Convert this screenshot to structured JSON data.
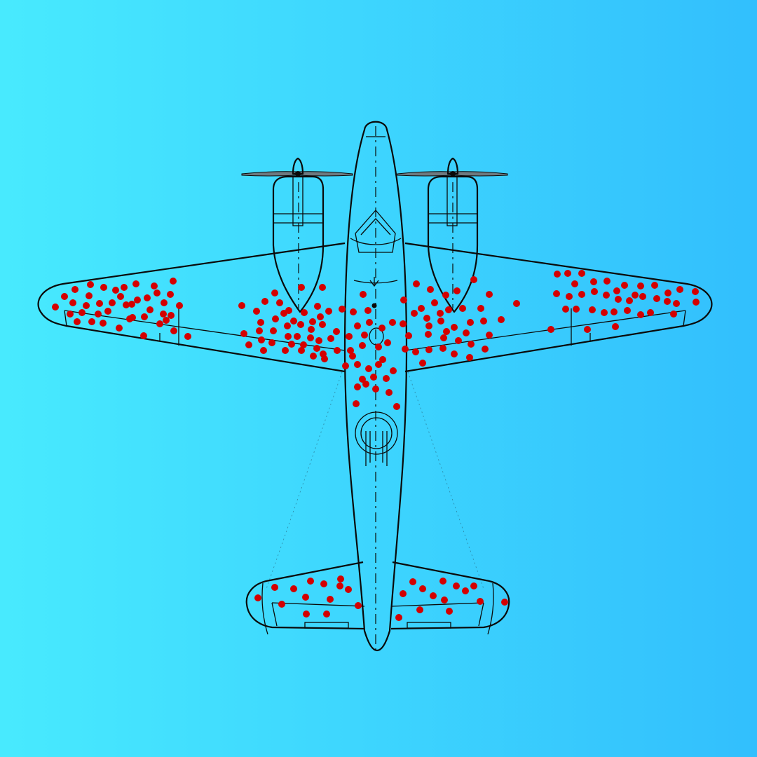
{
  "background": {
    "from": "#48eafe",
    "to": "#32bffd"
  },
  "outline_color": "#0a0a0a",
  "hit_color": "#d40000",
  "hit_regions": [
    {
      "region": "left-wing-outer",
      "count": 43
    },
    {
      "region": "left-wing-inner",
      "count": 44
    },
    {
      "region": "fuselage-center",
      "count": 28
    },
    {
      "region": "right-wing-inner",
      "count": 40
    },
    {
      "region": "right-wing-outer",
      "count": 38
    },
    {
      "region": "left-tailplane",
      "count": 14
    },
    {
      "region": "right-tailplane",
      "count": 14
    }
  ]
}
